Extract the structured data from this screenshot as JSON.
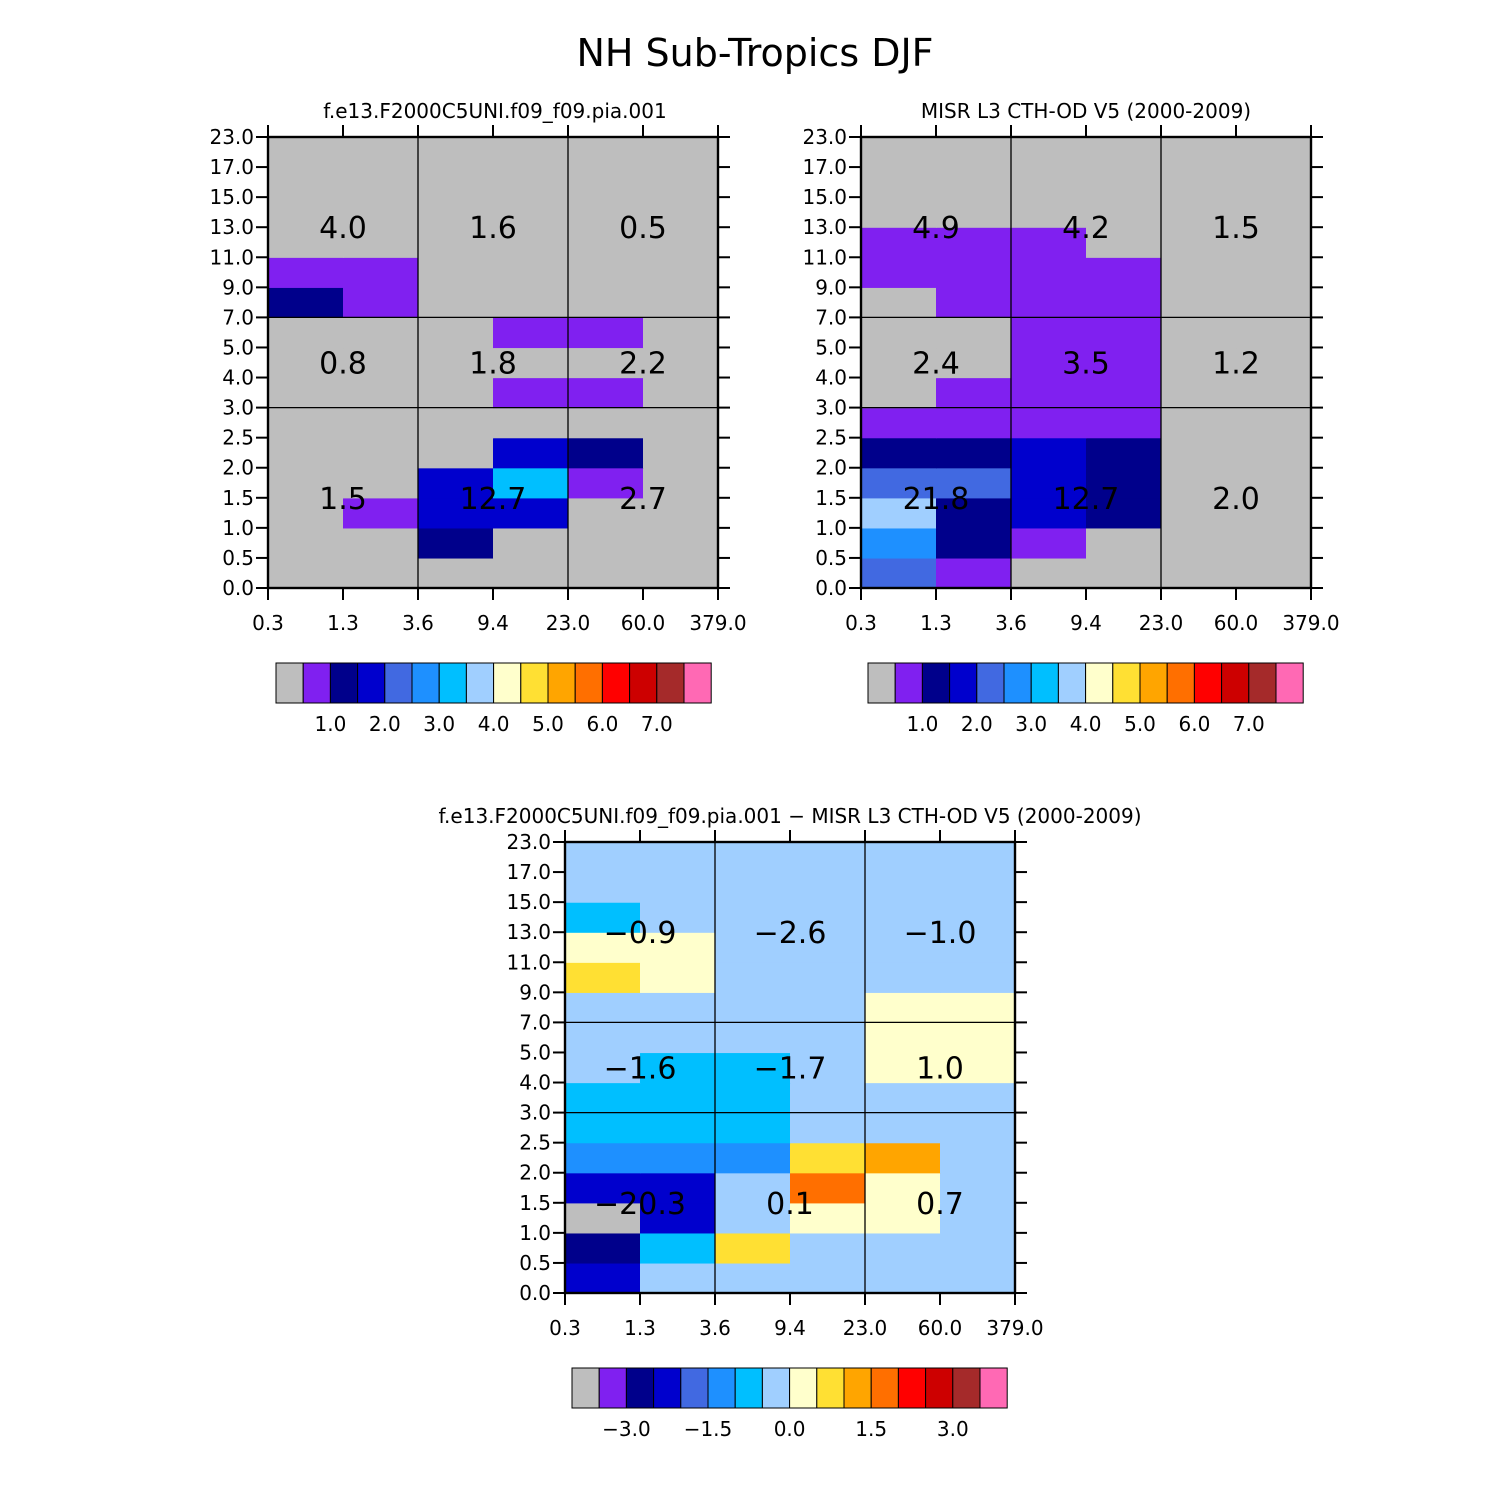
{
  "figure_title": "NH Sub-Tropics DJF",
  "x_tick_labels": [
    "0.3",
    "1.3",
    "3.6",
    "9.4",
    "23.0",
    "60.0",
    "379.0"
  ],
  "y_tick_labels": [
    "0.0",
    "0.5",
    "1.0",
    "1.5",
    "2.0",
    "2.5",
    "3.0",
    "4.0",
    "5.0",
    "7.0",
    "9.0",
    "11.0",
    "13.0",
    "15.0",
    "17.0",
    "23.0"
  ],
  "color_levels": [
    "#BEBEBE",
    "#8020F0",
    "#00008B",
    "#0000CD",
    "#4169E1",
    "#1E90FF",
    "#00BFFF",
    "#A0CFFF",
    "#FFFFCC",
    "#FFE033",
    "#FFA500",
    "#FF6F00",
    "#FF0000",
    "#CD0000",
    "#A52A2A",
    "#FF69B4"
  ],
  "chart_data": [
    {
      "id": "model",
      "type": "heatmap",
      "title": "f.e13.F2000C5UNI.f09_f09.pia.001",
      "x_bin_edges": [
        0.3,
        1.3,
        3.6,
        9.4,
        23.0,
        60.0,
        379.0
      ],
      "y_bin_edges": [
        0.0,
        0.5,
        1.0,
        1.5,
        2.0,
        2.5,
        3.0,
        4.0,
        5.0,
        7.0,
        9.0,
        11.0,
        13.0,
        15.0,
        17.0,
        23.0
      ],
      "cell_level_index_rows_bottom_to_top": [
        [
          0,
          0,
          0,
          0,
          0,
          0
        ],
        [
          0,
          0,
          2,
          0,
          0,
          0
        ],
        [
          0,
          1,
          3,
          3,
          0,
          0
        ],
        [
          0,
          0,
          3,
          6,
          1,
          0
        ],
        [
          0,
          0,
          0,
          3,
          2,
          0
        ],
        [
          0,
          0,
          0,
          0,
          0,
          0
        ],
        [
          0,
          0,
          0,
          1,
          1,
          0
        ],
        [
          0,
          0,
          0,
          0,
          0,
          0
        ],
        [
          0,
          0,
          0,
          1,
          1,
          0
        ],
        [
          2,
          1,
          0,
          0,
          0,
          0
        ],
        [
          1,
          1,
          0,
          0,
          0,
          0
        ],
        [
          0,
          0,
          0,
          0,
          0,
          0
        ],
        [
          0,
          0,
          0,
          0,
          0,
          0
        ],
        [
          0,
          0,
          0,
          0,
          0,
          0
        ],
        [
          0,
          0,
          0,
          0,
          0,
          0
        ]
      ],
      "region_totals": [
        {
          "label": "4.0",
          "col": 0,
          "row": "high"
        },
        {
          "label": "1.6",
          "col": 1,
          "row": "high"
        },
        {
          "label": "0.5",
          "col": 2,
          "row": "high"
        },
        {
          "label": "0.8",
          "col": 0,
          "row": "mid"
        },
        {
          "label": "1.8",
          "col": 1,
          "row": "mid"
        },
        {
          "label": "2.2",
          "col": 2,
          "row": "mid"
        },
        {
          "label": "1.5",
          "col": 0,
          "row": "low"
        },
        {
          "label": "12.7",
          "col": 1,
          "row": "low"
        },
        {
          "label": "2.7",
          "col": 2,
          "row": "low"
        }
      ],
      "colorbar_labels": [
        "1.0",
        "2.0",
        "3.0",
        "4.0",
        "5.0",
        "6.0",
        "7.0"
      ]
    },
    {
      "id": "obs",
      "type": "heatmap",
      "title": "MISR L3 CTH-OD V5 (2000-2009)",
      "x_bin_edges": [
        0.3,
        1.3,
        3.6,
        9.4,
        23.0,
        60.0,
        379.0
      ],
      "y_bin_edges": [
        0.0,
        0.5,
        1.0,
        1.5,
        2.0,
        2.5,
        3.0,
        4.0,
        5.0,
        7.0,
        9.0,
        11.0,
        13.0,
        15.0,
        17.0,
        23.0
      ],
      "cell_level_index_rows_bottom_to_top": [
        [
          4,
          1,
          0,
          0,
          0,
          0
        ],
        [
          5,
          2,
          1,
          0,
          0,
          0
        ],
        [
          7,
          2,
          3,
          2,
          0,
          0
        ],
        [
          4,
          4,
          3,
          2,
          0,
          0
        ],
        [
          2,
          2,
          3,
          2,
          0,
          0
        ],
        [
          1,
          1,
          1,
          1,
          0,
          0
        ],
        [
          0,
          1,
          1,
          1,
          0,
          0
        ],
        [
          0,
          0,
          1,
          1,
          0,
          0
        ],
        [
          0,
          0,
          1,
          1,
          0,
          0
        ],
        [
          0,
          1,
          1,
          1,
          0,
          0
        ],
        [
          1,
          1,
          1,
          1,
          0,
          0
        ],
        [
          1,
          1,
          1,
          0,
          0,
          0
        ],
        [
          0,
          0,
          0,
          0,
          0,
          0
        ],
        [
          0,
          0,
          0,
          0,
          0,
          0
        ],
        [
          0,
          0,
          0,
          0,
          0,
          0
        ]
      ],
      "region_totals": [
        {
          "label": "4.9",
          "col": 0,
          "row": "high"
        },
        {
          "label": "4.2",
          "col": 1,
          "row": "high"
        },
        {
          "label": "1.5",
          "col": 2,
          "row": "high"
        },
        {
          "label": "2.4",
          "col": 0,
          "row": "mid"
        },
        {
          "label": "3.5",
          "col": 1,
          "row": "mid"
        },
        {
          "label": "1.2",
          "col": 2,
          "row": "mid"
        },
        {
          "label": "21.8",
          "col": 0,
          "row": "low"
        },
        {
          "label": "12.7",
          "col": 1,
          "row": "low"
        },
        {
          "label": "2.0",
          "col": 2,
          "row": "low"
        }
      ],
      "colorbar_labels": [
        "1.0",
        "2.0",
        "3.0",
        "4.0",
        "5.0",
        "6.0",
        "7.0"
      ]
    },
    {
      "id": "diff",
      "type": "heatmap",
      "title": "f.e13.F2000C5UNI.f09_f09.pia.001 − MISR L3 CTH-OD V5 (2000-2009)",
      "x_bin_edges": [
        0.3,
        1.3,
        3.6,
        9.4,
        23.0,
        60.0,
        379.0
      ],
      "y_bin_edges": [
        0.0,
        0.5,
        1.0,
        1.5,
        2.0,
        2.5,
        3.0,
        4.0,
        5.0,
        7.0,
        9.0,
        11.0,
        13.0,
        15.0,
        17.0,
        23.0
      ],
      "cell_level_index_rows_bottom_to_top": [
        [
          3,
          7,
          7,
          7,
          7,
          7
        ],
        [
          2,
          6,
          9,
          7,
          7,
          7
        ],
        [
          0,
          3,
          7,
          8,
          8,
          7
        ],
        [
          3,
          3,
          7,
          11,
          8,
          7
        ],
        [
          5,
          5,
          5,
          9,
          10,
          7
        ],
        [
          6,
          6,
          6,
          7,
          7,
          7
        ],
        [
          6,
          6,
          6,
          7,
          7,
          7
        ],
        [
          7,
          6,
          6,
          7,
          8,
          8
        ],
        [
          7,
          7,
          7,
          7,
          8,
          8
        ],
        [
          7,
          7,
          7,
          7,
          8,
          8
        ],
        [
          9,
          8,
          7,
          7,
          7,
          7
        ],
        [
          8,
          8,
          7,
          7,
          7,
          7
        ],
        [
          6,
          7,
          7,
          7,
          7,
          7
        ],
        [
          7,
          7,
          7,
          7,
          7,
          7
        ],
        [
          7,
          7,
          7,
          7,
          7,
          7
        ]
      ],
      "region_totals": [
        {
          "label": "−0.9",
          "col": 0,
          "row": "high"
        },
        {
          "label": "−2.6",
          "col": 1,
          "row": "high"
        },
        {
          "label": "−1.0",
          "col": 2,
          "row": "high"
        },
        {
          "label": "−1.6",
          "col": 0,
          "row": "mid"
        },
        {
          "label": "−1.7",
          "col": 1,
          "row": "mid"
        },
        {
          "label": "1.0",
          "col": 2,
          "row": "mid"
        },
        {
          "label": "−20.3",
          "col": 0,
          "row": "low"
        },
        {
          "label": "0.1",
          "col": 1,
          "row": "low"
        },
        {
          "label": "0.7",
          "col": 2,
          "row": "low"
        }
      ],
      "colorbar_labels": [
        "−3.0",
        "−1.5",
        "0.0",
        "1.5",
        "3.0"
      ]
    }
  ]
}
